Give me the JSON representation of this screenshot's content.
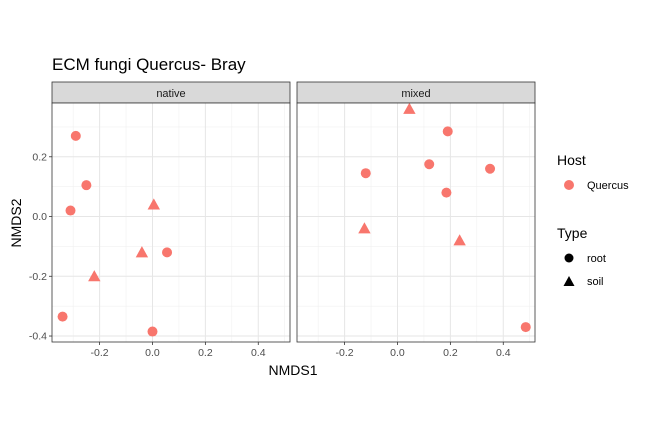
{
  "chart_data": {
    "type": "scatter",
    "title": "ECM fungi Quercus- Bray",
    "xlabel": "NMDS1",
    "ylabel": "NMDS2",
    "xlim": [
      -0.38,
      0.52
    ],
    "ylim": [
      -0.42,
      0.38
    ],
    "xticks": [
      -0.2,
      0.0,
      0.2,
      0.4
    ],
    "xtick_labels": [
      "-0.2",
      "0.0",
      "0.2",
      "0.4"
    ],
    "yticks": [
      -0.4,
      -0.2,
      0.0,
      0.2
    ],
    "ytick_labels": [
      "-0.4",
      "-0.2",
      "0.0",
      "0.2"
    ],
    "grid": true,
    "point_color": "#F8766D",
    "facets": [
      {
        "label": "native",
        "points": [
          {
            "x": -0.29,
            "y": 0.27,
            "type": "root"
          },
          {
            "x": -0.25,
            "y": 0.105,
            "type": "root"
          },
          {
            "x": -0.31,
            "y": 0.02,
            "type": "root"
          },
          {
            "x": 0.055,
            "y": -0.12,
            "type": "root"
          },
          {
            "x": -0.34,
            "y": -0.335,
            "type": "root"
          },
          {
            "x": 0.0,
            "y": -0.385,
            "type": "root"
          },
          {
            "x": 0.005,
            "y": 0.04,
            "type": "soil"
          },
          {
            "x": -0.04,
            "y": -0.12,
            "type": "soil"
          },
          {
            "x": -0.22,
            "y": -0.2,
            "type": "soil"
          }
        ]
      },
      {
        "label": "mixed",
        "points": [
          {
            "x": 0.19,
            "y": 0.285,
            "type": "root"
          },
          {
            "x": 0.12,
            "y": 0.175,
            "type": "root"
          },
          {
            "x": -0.12,
            "y": 0.145,
            "type": "root"
          },
          {
            "x": 0.35,
            "y": 0.16,
            "type": "root"
          },
          {
            "x": 0.185,
            "y": 0.08,
            "type": "root"
          },
          {
            "x": 0.485,
            "y": -0.37,
            "type": "root"
          },
          {
            "x": 0.045,
            "y": 0.36,
            "type": "soil"
          },
          {
            "x": -0.125,
            "y": -0.04,
            "type": "soil"
          },
          {
            "x": 0.235,
            "y": -0.08,
            "type": "soil"
          }
        ]
      }
    ],
    "legend": {
      "placement": "right",
      "host": {
        "title": "Host",
        "items": [
          {
            "label": "Quercus",
            "color": "#F8766D"
          }
        ]
      },
      "type": {
        "title": "Type",
        "items": [
          {
            "label": "root",
            "shape": "circle"
          },
          {
            "label": "soil",
            "shape": "triangle"
          }
        ]
      }
    }
  }
}
